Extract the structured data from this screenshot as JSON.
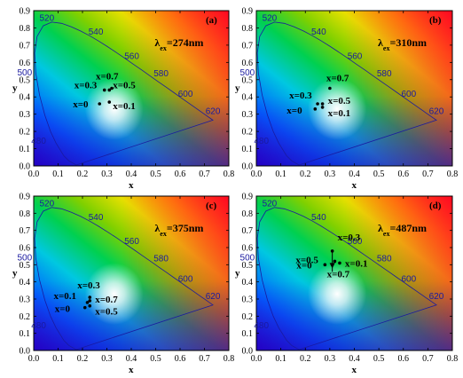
{
  "colors": {
    "locus": "#1a1aa0",
    "text": "#000000"
  },
  "chart_data": [
    {
      "type": "scatter",
      "panel_label": "(a)",
      "excitation": {
        "symbol": "λ",
        "sub": "ex",
        "rest": "=274nm"
      },
      "xlabel": "x",
      "ylabel": "y",
      "xlim": [
        0.0,
        0.8
      ],
      "ylim": [
        0.0,
        0.9
      ],
      "x_ticks": [
        "0.0",
        "0.1",
        "0.2",
        "0.3",
        "0.4",
        "0.5",
        "0.6",
        "0.7",
        "0.8"
      ],
      "y_ticks": [
        "0.0",
        "0.1",
        "0.2",
        "0.3",
        "0.4",
        "0.5",
        "0.6",
        "0.7",
        "0.8",
        "0.9"
      ],
      "wavelength_labels": [
        "480",
        "500",
        "520",
        "540",
        "560",
        "580",
        "600",
        "620"
      ],
      "points": [
        {
          "label": "x=0",
          "x": 0.27,
          "y": 0.36
        },
        {
          "label": "x=0.1",
          "x": 0.31,
          "y": 0.37
        },
        {
          "label": "x=0.3",
          "x": 0.29,
          "y": 0.44
        },
        {
          "label": "x=0.5",
          "x": 0.31,
          "y": 0.44
        },
        {
          "label": "x=0.7",
          "x": 0.32,
          "y": 0.45
        }
      ]
    },
    {
      "type": "scatter",
      "panel_label": "(b)",
      "excitation": {
        "symbol": "λ",
        "sub": "ex",
        "rest": "=310nm"
      },
      "xlabel": "x",
      "ylabel": "y",
      "xlim": [
        0.0,
        0.8
      ],
      "ylim": [
        0.0,
        0.9
      ],
      "x_ticks": [
        "0.0",
        "0.1",
        "0.2",
        "0.3",
        "0.4",
        "0.5",
        "0.6",
        "0.7",
        "0.8"
      ],
      "y_ticks": [
        "0.0",
        "0.1",
        "0.2",
        "0.3",
        "0.4",
        "0.5",
        "0.6",
        "0.7",
        "0.8",
        "0.9"
      ],
      "wavelength_labels": [
        "480",
        "500",
        "520",
        "540",
        "560",
        "580",
        "600",
        "620"
      ],
      "points": [
        {
          "label": "x=0",
          "x": 0.24,
          "y": 0.33
        },
        {
          "label": "x=0.1",
          "x": 0.27,
          "y": 0.34
        },
        {
          "label": "x=0.3",
          "x": 0.25,
          "y": 0.36
        },
        {
          "label": "x=0.5",
          "x": 0.27,
          "y": 0.36
        },
        {
          "label": "x=0.7",
          "x": 0.3,
          "y": 0.45
        }
      ]
    },
    {
      "type": "scatter",
      "panel_label": "(c)",
      "excitation": {
        "symbol": "λ",
        "sub": "ex",
        "rest": "=375nm"
      },
      "xlabel": "x",
      "ylabel": "y",
      "xlim": [
        0.0,
        0.8
      ],
      "ylim": [
        0.0,
        0.9
      ],
      "x_ticks": [
        "0.0",
        "0.1",
        "0.2",
        "0.3",
        "0.4",
        "0.5",
        "0.6",
        "0.7",
        "0.8"
      ],
      "y_ticks": [
        "0.0",
        "0.1",
        "0.2",
        "0.3",
        "0.4",
        "0.5",
        "0.6",
        "0.7",
        "0.8",
        "0.9"
      ],
      "wavelength_labels": [
        "480",
        "500",
        "520",
        "540",
        "560",
        "580",
        "600",
        "620"
      ],
      "points": [
        {
          "label": "x=0",
          "x": 0.21,
          "y": 0.25
        },
        {
          "label": "x=0.1",
          "x": 0.22,
          "y": 0.28
        },
        {
          "label": "x=0.3",
          "x": 0.23,
          "y": 0.31
        },
        {
          "label": "x=0.5",
          "x": 0.23,
          "y": 0.26
        },
        {
          "label": "x=0.7",
          "x": 0.23,
          "y": 0.29
        }
      ]
    },
    {
      "type": "scatter",
      "panel_label": "(d)",
      "excitation": {
        "symbol": "λ",
        "sub": "ex",
        "rest": "=487nm"
      },
      "xlabel": "x",
      "ylabel": "y",
      "xlim": [
        0.0,
        0.8
      ],
      "ylim": [
        0.0,
        0.9
      ],
      "x_ticks": [
        "0.0",
        "0.1",
        "0.2",
        "0.3",
        "0.4",
        "0.5",
        "0.6",
        "0.7",
        "0.8"
      ],
      "y_ticks": [
        "0.0",
        "0.1",
        "0.2",
        "0.3",
        "0.4",
        "0.5",
        "0.6",
        "0.7",
        "0.8",
        "0.9"
      ],
      "wavelength_labels": [
        "480",
        "500",
        "520",
        "540",
        "560",
        "580",
        "600",
        "620"
      ],
      "points": [
        {
          "label": "x=0",
          "x": 0.28,
          "y": 0.5
        },
        {
          "label": "x=0.1",
          "x": 0.34,
          "y": 0.51
        },
        {
          "label": "x=0.3",
          "x": 0.31,
          "y": 0.58
        },
        {
          "label": "x=0.5",
          "x": 0.32,
          "y": 0.52
        },
        {
          "label": "x=0.7",
          "x": 0.31,
          "y": 0.5
        }
      ]
    }
  ]
}
